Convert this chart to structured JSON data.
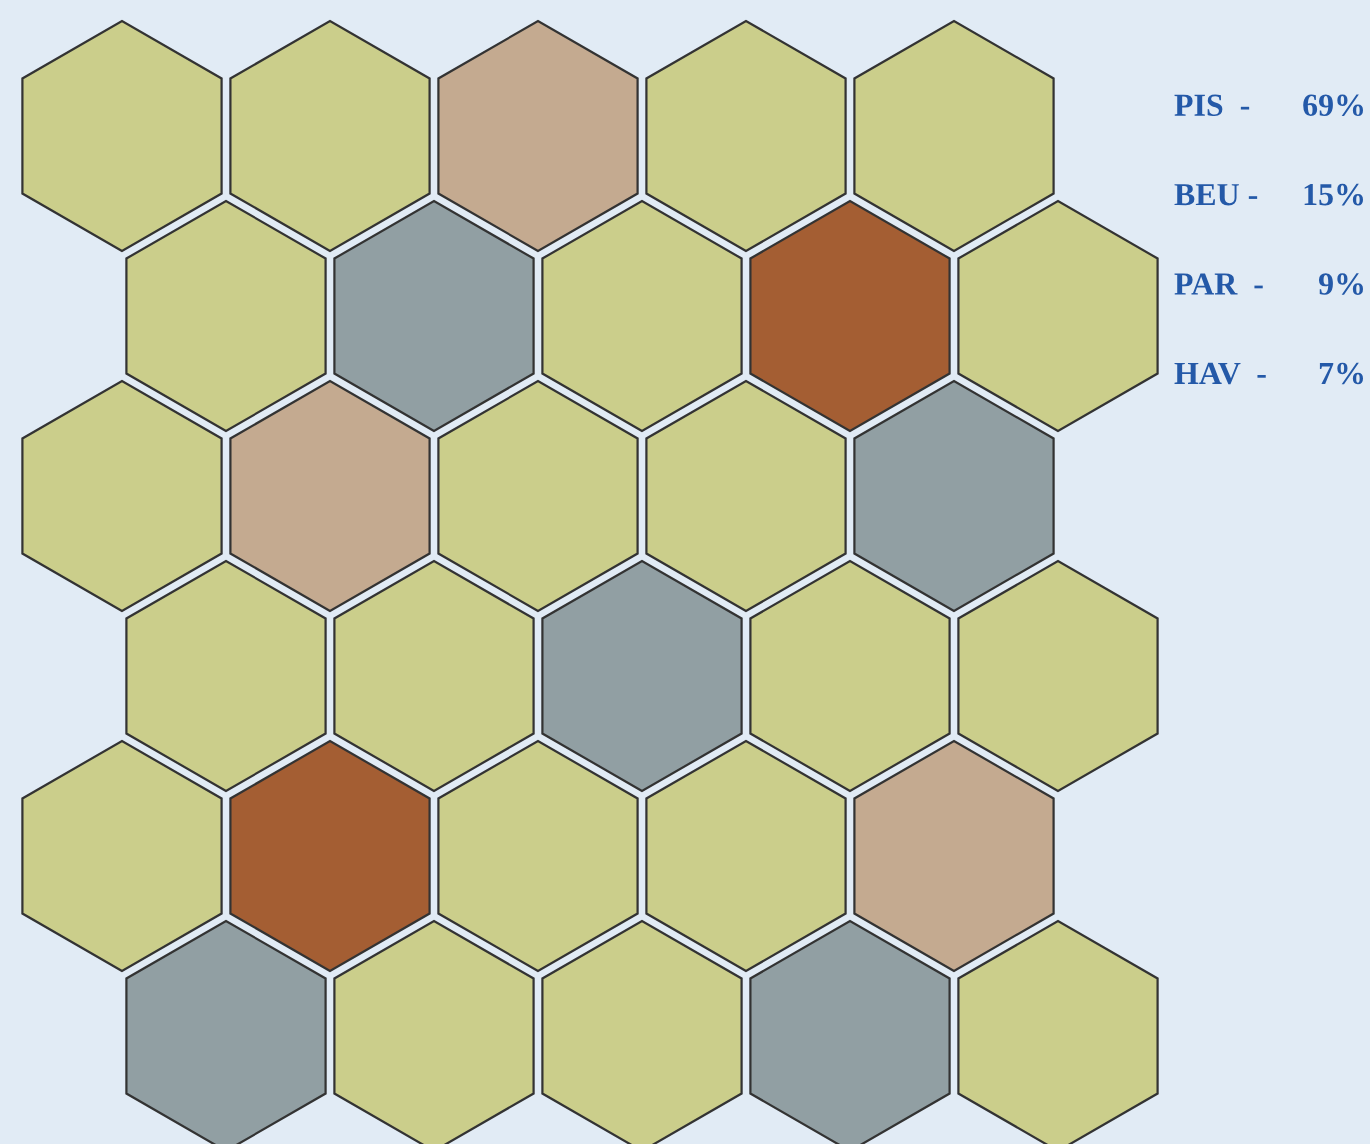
{
  "chart_data": {
    "type": "other",
    "categories": [
      "PIS  -",
      "BEU -",
      "PAR  -",
      "HAV  -"
    ],
    "values": [
      69,
      15,
      9,
      7
    ],
    "value_labels": [
      "69%",
      "15%",
      "9%",
      "7%"
    ],
    "colors": [
      "#cbce8b",
      "#919fa3",
      "#c4aa90",
      "#a45e33"
    ]
  }
}
